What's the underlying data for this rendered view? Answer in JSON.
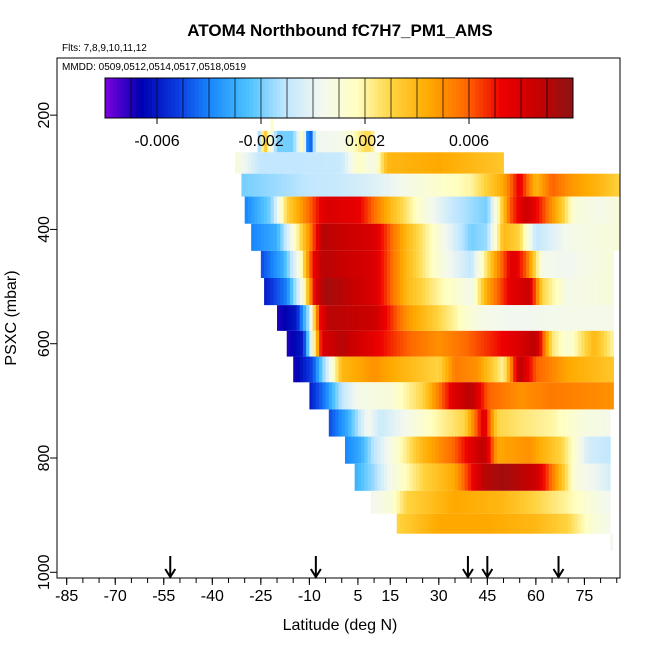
{
  "chart_data": {
    "type": "heatmap",
    "title": "ATOM4 Northbound fC7H7_PM1_AMS",
    "annotations": [
      "Flts: 7,8,9,10,11,12",
      "MMDD: 0509,0512,0514,0517,0518,0519"
    ],
    "xlabel": "Latitude (deg N)",
    "ylabel": "PSXC (mbar)",
    "xlim": [
      -88,
      86
    ],
    "ylim": [
      1010,
      100
    ],
    "x_ticks": [
      -85,
      -70,
      -55,
      -40,
      -25,
      -10,
      5,
      15,
      30,
      45,
      60,
      75
    ],
    "y_ticks": [
      200,
      400,
      600,
      800,
      1000
    ],
    "colorbar": {
      "range": [
        -0.008,
        0.01
      ],
      "tick_values": [
        -0.006,
        -0.002,
        0.002,
        0.006
      ],
      "tick_labels": [
        "-0.006",
        "-0.002",
        "0.002",
        "0.006"
      ],
      "colors": [
        "#7b00e0",
        "#0000b0",
        "#0a3ae0",
        "#1a8cff",
        "#4fc3ff",
        "#bfe6ff",
        "#f2f8f0",
        "#ffffc0",
        "#ffd23c",
        "#ffaa00",
        "#ff6a00",
        "#ee0000",
        "#c80000",
        "#8c1414"
      ]
    },
    "arrows_lat": [
      -53,
      -8,
      39,
      45,
      67
    ],
    "levels": [
      {
        "p": 210,
        "lat0": -22,
        "lat1": -22,
        "values": [
          [
            -22,
            0.0015
          ]
        ]
      },
      {
        "p": 245,
        "lat0": -26,
        "lat1": 10,
        "values": [
          [
            -26,
            -0.003
          ],
          [
            -24,
            0.004
          ],
          [
            -20,
            -0.002
          ],
          [
            -15,
            -0.002
          ],
          [
            -12,
            0.002
          ],
          [
            -10,
            -0.006
          ],
          [
            -8,
            0.0002
          ],
          [
            0,
            0.0005
          ],
          [
            8,
            0.003
          ],
          [
            10,
            0.002
          ]
        ]
      },
      {
        "p": 285,
        "lat0": -33,
        "lat1": 50,
        "values": [
          [
            -33,
            0.001
          ],
          [
            -25,
            -0.001
          ],
          [
            -15,
            -0.001
          ],
          [
            0,
            -0.0008
          ],
          [
            5,
            0.0015
          ],
          [
            10,
            0.0005
          ],
          [
            14,
            0.004
          ],
          [
            30,
            0.0045
          ],
          [
            50,
            0.0035
          ]
        ]
      },
      {
        "p": 320,
        "lat0": -31,
        "lat1": 86,
        "values": [
          [
            -31,
            -0.002
          ],
          [
            -20,
            -0.0015
          ],
          [
            -10,
            -0.001
          ],
          [
            0,
            -0.0008
          ],
          [
            10,
            -0.0003
          ],
          [
            25,
            0.001
          ],
          [
            40,
            0.002
          ],
          [
            50,
            0.0045
          ],
          [
            55,
            0.0075
          ],
          [
            60,
            0.004
          ],
          [
            65,
            0.006
          ],
          [
            70,
            0.005
          ],
          [
            80,
            0.004
          ],
          [
            86,
            0.003
          ]
        ]
      },
      {
        "p": 365,
        "lat0": -30,
        "lat1": 86,
        "values": [
          [
            -30,
            -0.004
          ],
          [
            -22,
            -0.002
          ],
          [
            -17,
            0.003
          ],
          [
            -12,
            0.005
          ],
          [
            -5,
            0.008
          ],
          [
            5,
            0.0075
          ],
          [
            15,
            0.004
          ],
          [
            25,
            0.001
          ],
          [
            35,
            -0.001
          ],
          [
            45,
            -0.002
          ],
          [
            52,
            0.006
          ],
          [
            57,
            0.0085
          ],
          [
            62,
            0.0065
          ],
          [
            67,
            0.004
          ],
          [
            72,
            0.001
          ],
          [
            80,
            0.0005
          ],
          [
            86,
            0.001
          ]
        ]
      },
      {
        "p": 415,
        "lat0": -28,
        "lat1": 86,
        "values": [
          [
            -28,
            -0.004
          ],
          [
            -20,
            -0.003
          ],
          [
            -15,
            0.001
          ],
          [
            -10,
            0.005
          ],
          [
            -6,
            0.009
          ],
          [
            10,
            0.008
          ],
          [
            20,
            0.004
          ],
          [
            30,
            0.001
          ],
          [
            40,
            -0.002
          ],
          [
            45,
            -0.0015
          ],
          [
            50,
            0.004
          ],
          [
            55,
            0.003
          ],
          [
            60,
            -0.001
          ],
          [
            70,
            0.0005
          ],
          [
            86,
            0.001
          ]
        ]
      },
      {
        "p": 460,
        "lat0": -25,
        "lat1": 84,
        "values": [
          [
            -25,
            -0.005
          ],
          [
            -18,
            -0.003
          ],
          [
            -13,
            0.001
          ],
          [
            -9,
            0.007
          ],
          [
            -6,
            0.009
          ],
          [
            10,
            0.008
          ],
          [
            20,
            0.004
          ],
          [
            30,
            0.001
          ],
          [
            40,
            -0.001
          ],
          [
            48,
            0.005
          ],
          [
            53,
            0.008
          ],
          [
            57,
            0.006
          ],
          [
            62,
            0.0005
          ],
          [
            70,
            0.0003
          ],
          [
            84,
            0.001
          ]
        ]
      },
      {
        "p": 510,
        "lat0": -24,
        "lat1": 84,
        "values": [
          [
            -24,
            -0.006
          ],
          [
            -17,
            -0.004
          ],
          [
            -12,
            0.001
          ],
          [
            -8,
            0.008
          ],
          [
            -5,
            0.0095
          ],
          [
            10,
            0.008
          ],
          [
            20,
            0.004
          ],
          [
            30,
            0.002
          ],
          [
            40,
            0.0005
          ],
          [
            45,
            0.0045
          ],
          [
            52,
            0.0075
          ],
          [
            58,
            0.0085
          ],
          [
            62,
            0.003
          ],
          [
            70,
            0.0005
          ],
          [
            84,
            0.001
          ]
        ]
      },
      {
        "p": 555,
        "lat0": -20,
        "lat1": 84,
        "values": [
          [
            -20,
            -0.007
          ],
          [
            -14,
            -0.006
          ],
          [
            -10,
            -0.001
          ],
          [
            -7,
            0.007
          ],
          [
            -4,
            0.009
          ],
          [
            10,
            0.0085
          ],
          [
            20,
            0.005
          ],
          [
            30,
            0.003
          ],
          [
            40,
            0.001
          ],
          [
            45,
            0.0005
          ],
          [
            55,
            0.0003
          ],
          [
            70,
            0.0005
          ],
          [
            84,
            0.0005
          ]
        ]
      },
      {
        "p": 600,
        "lat0": -17,
        "lat1": 84,
        "values": [
          [
            -17,
            -0.007
          ],
          [
            -12,
            -0.006
          ],
          [
            -9,
            0.001
          ],
          [
            -6,
            0.008
          ],
          [
            0,
            0.009
          ],
          [
            10,
            0.0075
          ],
          [
            20,
            0.006
          ],
          [
            30,
            0.005
          ],
          [
            40,
            0.006
          ],
          [
            48,
            0.007
          ],
          [
            55,
            0.008
          ],
          [
            60,
            0.009
          ],
          [
            65,
            0.0025
          ],
          [
            70,
            0.001
          ],
          [
            78,
            0.004
          ],
          [
            84,
            0.002
          ]
        ]
      },
      {
        "p": 645,
        "lat0": -15,
        "lat1": 84,
        "values": [
          [
            -15,
            -0.007
          ],
          [
            -9,
            -0.005
          ],
          [
            -5,
            -0.001
          ],
          [
            0,
            0.004
          ],
          [
            10,
            0.005
          ],
          [
            20,
            0.004
          ],
          [
            30,
            0.003
          ],
          [
            35,
            0.0055
          ],
          [
            42,
            0.005
          ],
          [
            50,
            0.002
          ],
          [
            55,
            0.009
          ],
          [
            60,
            0.006
          ],
          [
            70,
            0.0045
          ],
          [
            84,
            0.0035
          ]
        ]
      },
      {
        "p": 690,
        "lat0": -10,
        "lat1": 84,
        "values": [
          [
            -10,
            -0.006
          ],
          [
            -5,
            -0.004
          ],
          [
            0,
            -0.001
          ],
          [
            5,
            0.0005
          ],
          [
            15,
            0.001
          ],
          [
            25,
            0.003
          ],
          [
            35,
            0.008
          ],
          [
            40,
            0.009
          ],
          [
            45,
            0.006
          ],
          [
            55,
            0.005
          ],
          [
            65,
            0.0055
          ],
          [
            84,
            0.005
          ]
        ]
      },
      {
        "p": 740,
        "lat0": -4,
        "lat1": 83,
        "values": [
          [
            -4,
            -0.005
          ],
          [
            2,
            -0.003
          ],
          [
            8,
            0.0005
          ],
          [
            12,
            -0.0008
          ],
          [
            20,
            0.0005
          ],
          [
            30,
            0.002
          ],
          [
            38,
            0.003
          ],
          [
            44,
            0.008
          ],
          [
            48,
            0.003
          ],
          [
            55,
            0.0025
          ],
          [
            65,
            0.002
          ],
          [
            75,
            0.0008
          ],
          [
            83,
            0.0005
          ]
        ]
      },
      {
        "p": 785,
        "lat0": 1,
        "lat1": 83,
        "values": [
          [
            1,
            -0.004
          ],
          [
            6,
            -0.003
          ],
          [
            10,
            -0.001
          ],
          [
            16,
            0.001
          ],
          [
            25,
            0.004
          ],
          [
            35,
            0.006
          ],
          [
            44,
            0.009
          ],
          [
            48,
            0.0045
          ],
          [
            58,
            0.005
          ],
          [
            68,
            0.003
          ],
          [
            76,
            -0.0005
          ],
          [
            83,
            -0.001
          ]
        ]
      },
      {
        "p": 835,
        "lat0": 4,
        "lat1": 83,
        "values": [
          [
            4,
            -0.003
          ],
          [
            10,
            -0.0015
          ],
          [
            15,
            0.0005
          ],
          [
            25,
            0.003
          ],
          [
            35,
            0.0045
          ],
          [
            44,
            0.009
          ],
          [
            50,
            0.0095
          ],
          [
            60,
            0.0085
          ],
          [
            66,
            0.005
          ],
          [
            72,
            0.001
          ],
          [
            83,
            -0.0005
          ]
        ]
      },
      {
        "p": 880,
        "lat0": 9,
        "lat1": 83,
        "values": [
          [
            9,
            0.0003
          ],
          [
            15,
            0.001
          ],
          [
            20,
            0.003
          ],
          [
            35,
            0.0045
          ],
          [
            50,
            0.004
          ],
          [
            60,
            0.003
          ],
          [
            70,
            0.002
          ],
          [
            78,
            0.0008
          ],
          [
            83,
            0.0003
          ]
        ]
      },
      {
        "p": 915,
        "lat0": 17,
        "lat1": 83,
        "values": [
          [
            17,
            0.003
          ],
          [
            30,
            0.0045
          ],
          [
            45,
            0.0045
          ],
          [
            60,
            0.004
          ],
          [
            70,
            0.003
          ],
          [
            78,
            0.001
          ],
          [
            83,
            0.0005
          ]
        ]
      },
      {
        "p": 950,
        "lat0": 83,
        "lat1": 83,
        "values": [
          [
            83,
            0.0003
          ]
        ]
      }
    ]
  }
}
